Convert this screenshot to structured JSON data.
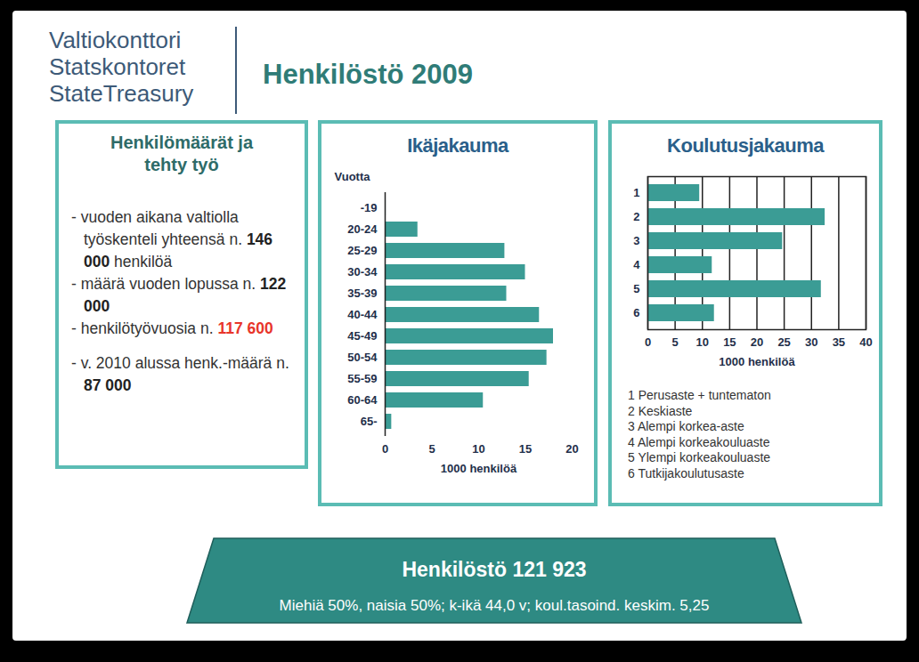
{
  "header": {
    "organization": [
      "Valtiokonttori",
      "Statskontoret",
      "StateTreasury"
    ],
    "title": "Henkilöstö 2009"
  },
  "panel": {
    "title": "Henkilömäärät ja tehty työ",
    "items": [
      {
        "pre": "- vuoden aikana valtiolla työskenteli yhteensä n. ",
        "num": "146 000",
        "post": " henkilöä"
      },
      {
        "pre": "- määrä vuoden lopussa n. ",
        "num": "122 000"
      },
      {
        "pre": "- henkilötyövuosia n. ",
        "num": "117 600",
        "color": "#e8352a"
      },
      {
        "pre": "- v. 2010 alussa henk.-määrä n. ",
        "num": "87 000"
      }
    ]
  },
  "chart_data": [
    {
      "type": "bar",
      "orientation": "horizontal",
      "title": "Ikäjakauma",
      "ylabel": "Vuotta",
      "xlabel": "1000 henkilöä",
      "categories": [
        "-19",
        "20-24",
        "25-29",
        "30-34",
        "35-39",
        "40-44",
        "45-49",
        "50-54",
        "55-59",
        "60-64",
        "65-"
      ],
      "values": [
        0.1,
        3.5,
        12.8,
        15.0,
        13.0,
        16.5,
        18.0,
        17.3,
        15.4,
        10.5,
        0.7
      ],
      "color": "#3b9c95",
      "xlim": [
        0,
        20
      ],
      "xticks": [
        0,
        5,
        10,
        15,
        20
      ],
      "grid": false
    },
    {
      "type": "bar",
      "orientation": "horizontal",
      "title": "Koulutusjakauma",
      "xlabel": "1000 henkilöä",
      "categories": [
        "1",
        "2",
        "3",
        "4",
        "5",
        "6"
      ],
      "values": [
        9.5,
        32.5,
        24.7,
        11.8,
        31.8,
        12.2
      ],
      "color": "#3b9c95",
      "xlim": [
        0,
        40
      ],
      "xticks": [
        0,
        5,
        10,
        15,
        20,
        25,
        30,
        35,
        40
      ],
      "grid": true,
      "annotations": [
        "1 Perusaste + tuntematon",
        "2 Keskiaste",
        "3 Alempi korkea-aste",
        "4 Alempi korkeakouluaste",
        "5 Ylempi korkeakouluaste",
        "6 Tutkijakoulutusaste"
      ]
    }
  ],
  "banner": {
    "title": "Henkilöstö 121 923",
    "text": "Miehiä 50%, naisia 50%; k-ikä 44,0 v; koul.tasoind. keskim. 5,25"
  }
}
